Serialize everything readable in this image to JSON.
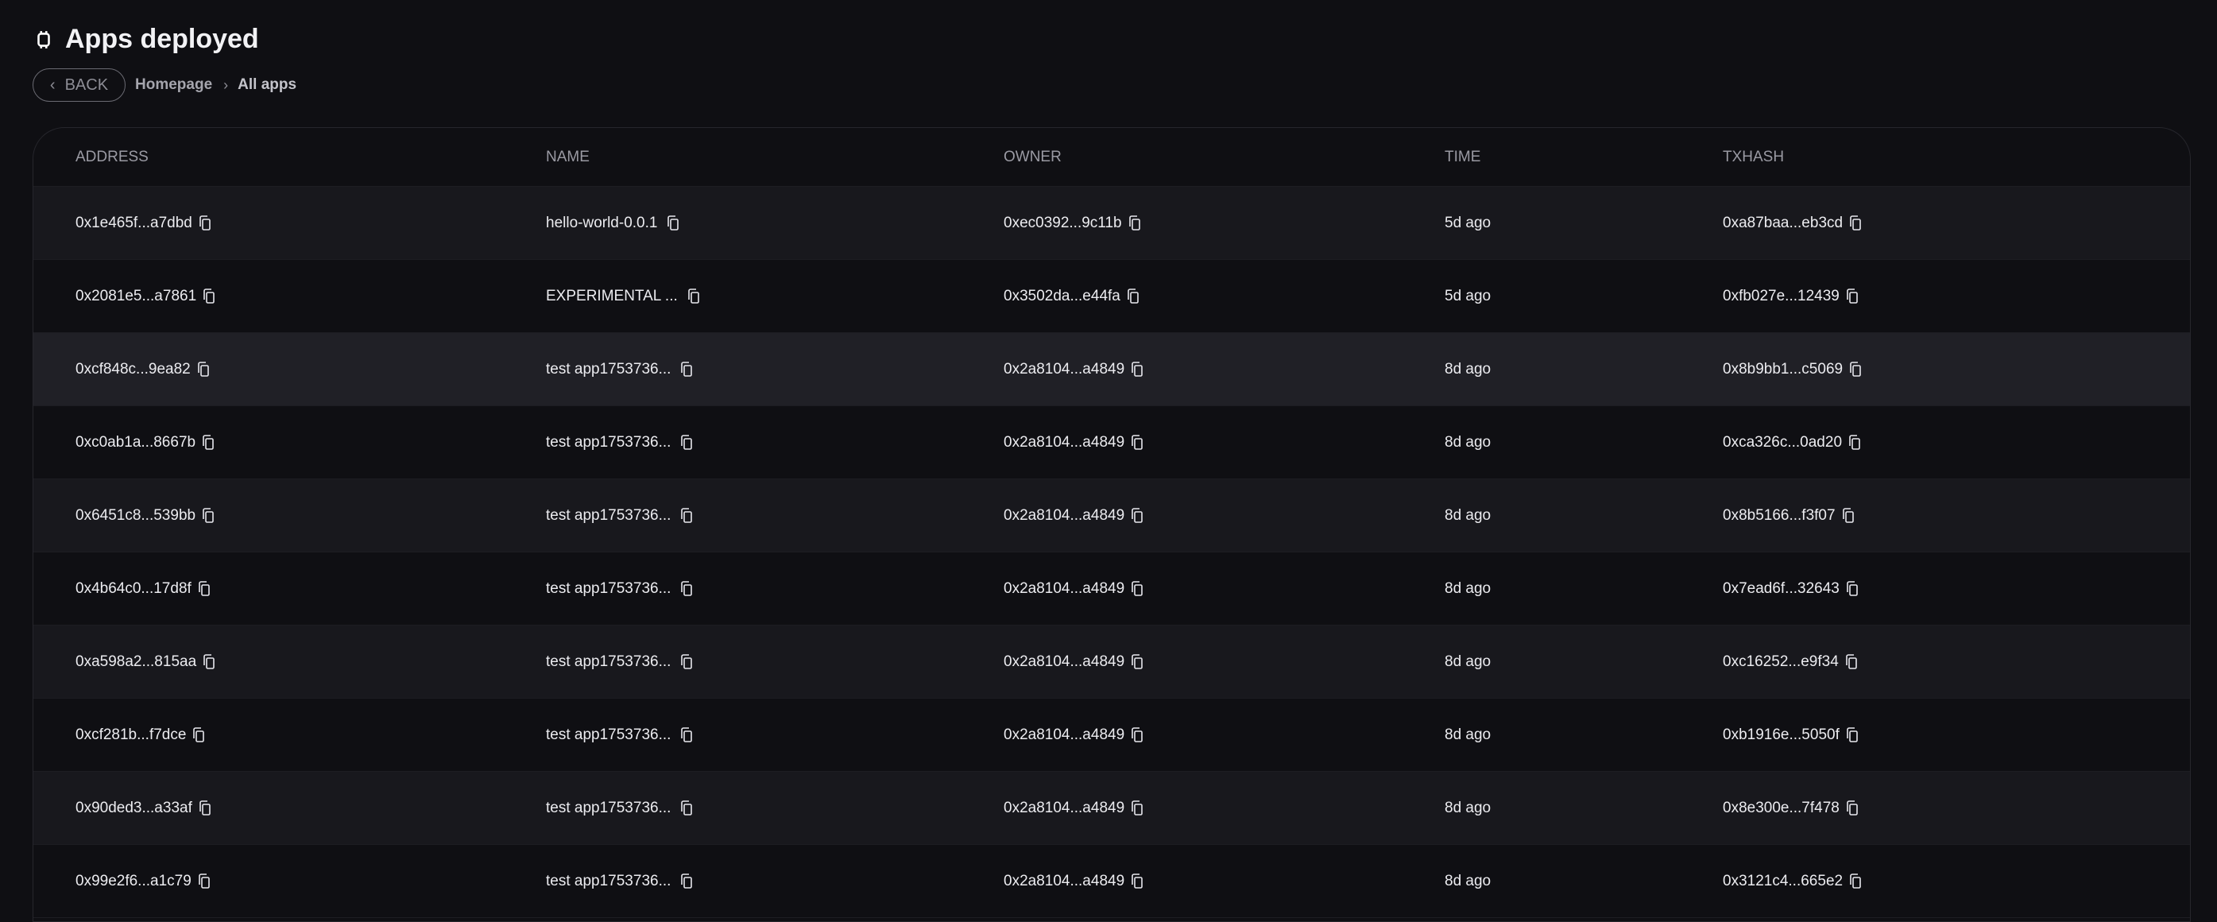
{
  "header": {
    "title": "Apps deployed",
    "icon": "chip-icon"
  },
  "breadcrumb": {
    "back_label": "BACK",
    "items": [
      "Homepage",
      "All apps"
    ]
  },
  "table": {
    "columns": [
      "ADDRESS",
      "NAME",
      "OWNER",
      "TIME",
      "TXHASH"
    ],
    "rows": [
      [
        "0x1e465f...a7dbd",
        "hello-world-0.0.1",
        "0xec0392...9c11b",
        "5d ago",
        "0xa87baa...eb3cd"
      ],
      [
        "0x2081e5...a7861",
        "EXPERIMENTAL ...",
        "0x3502da...e44fa",
        "5d ago",
        "0xfb027e...12439"
      ],
      [
        "0xcf848c...9ea82",
        "test app1753736...",
        "0x2a8104...a4849",
        "8d ago",
        "0x8b9bb1...c5069"
      ],
      [
        "0xc0ab1a...8667b",
        "test app1753736...",
        "0x2a8104...a4849",
        "8d ago",
        "0xca326c...0ad20"
      ],
      [
        "0x6451c8...539bb",
        "test app1753736...",
        "0x2a8104...a4849",
        "8d ago",
        "0x8b5166...f3f07"
      ],
      [
        "0x4b64c0...17d8f",
        "test app1753736...",
        "0x2a8104...a4849",
        "8d ago",
        "0x7ead6f...32643"
      ],
      [
        "0xa598a2...815aa",
        "test app1753736...",
        "0x2a8104...a4849",
        "8d ago",
        "0xc16252...e9f34"
      ],
      [
        "0xcf281b...f7dce",
        "test app1753736...",
        "0x2a8104...a4849",
        "8d ago",
        "0xb1916e...5050f"
      ],
      [
        "0x90ded3...a33af",
        "test app1753736...",
        "0x2a8104...a4849",
        "8d ago",
        "0x8e300e...7f478"
      ],
      [
        "0x99e2f6...a1c79",
        "test app1753736...",
        "0x2a8104...a4849",
        "8d ago",
        "0x3121c4...665e2"
      ]
    ],
    "hovered_row": 2
  }
}
